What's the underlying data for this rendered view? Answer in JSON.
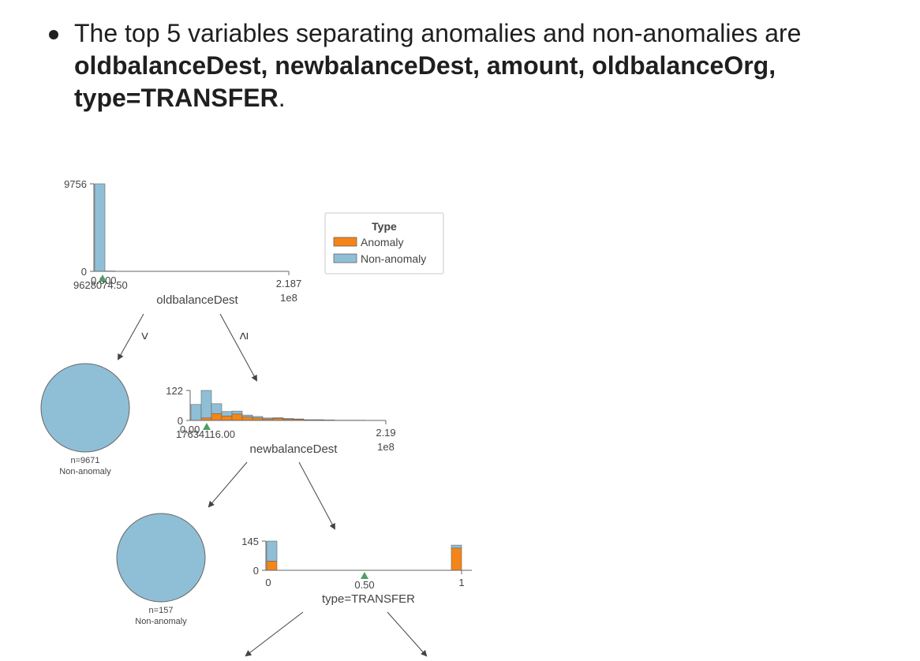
{
  "bullet": {
    "prefix": "The top 5 variables separating anomalies and non-anomalies are ",
    "bold": "oldbalanceDest, newbalanceDest, amount, oldbalanceOrg, type=TRANSFER",
    "suffix": "."
  },
  "legend": {
    "title": "Type",
    "items": [
      {
        "label": "Anomaly",
        "color": "#f58518"
      },
      {
        "label": "Non-anomaly",
        "color": "#8fbfd6"
      }
    ]
  },
  "tree": {
    "node1": {
      "feature": "oldbalanceDest",
      "ymax": "9756",
      "ymin": "0",
      "xmin": "0.000",
      "xmax": "2.187",
      "scale": "1e8",
      "split": "9628074.50",
      "left_sign": "<",
      "right_sign": "≥"
    },
    "leaf1": {
      "n": "n=9671",
      "label": "Non-anomaly"
    },
    "node2": {
      "feature": "newbalanceDest",
      "ymax": "122",
      "ymin": "0",
      "xmin": "0.00",
      "xmax": "2.19",
      "scale": "1e8",
      "split": "17634116.00"
    },
    "leaf2": {
      "n": "n=157",
      "label": "Non-anomaly"
    },
    "node3": {
      "feature": "type=TRANSFER",
      "ymax": "145",
      "ymin": "0",
      "xmin": "0",
      "xmax": "1",
      "split": "0.50"
    }
  },
  "chart_data": [
    {
      "type": "bar",
      "title": "",
      "xlabel": "oldbalanceDest",
      "ylabel": "",
      "ylim": [
        0,
        9756
      ],
      "xlim": [
        0,
        218700000
      ],
      "split": 9628074.5,
      "series": [
        {
          "name": "Non-anomaly",
          "values": [
            9756,
            40,
            15,
            8,
            5,
            3,
            2,
            1
          ]
        },
        {
          "name": "Anomaly",
          "values": [
            0,
            0,
            0,
            0,
            0,
            0,
            0,
            0
          ]
        }
      ]
    },
    {
      "type": "bar",
      "title": "",
      "xlabel": "newbalanceDest",
      "ylabel": "",
      "ylim": [
        0,
        122
      ],
      "xlim": [
        0,
        219000000
      ],
      "split": 17634116.0,
      "series": [
        {
          "name": "Non-anomaly",
          "values": [
            65,
            112,
            40,
            18,
            12,
            8,
            6,
            4,
            3,
            3,
            2,
            1,
            1,
            1,
            0,
            0,
            0
          ]
        },
        {
          "name": "Anomaly",
          "values": [
            0,
            10,
            28,
            18,
            26,
            14,
            10,
            6,
            8,
            5,
            4,
            2,
            2,
            1,
            1,
            1,
            1
          ]
        }
      ]
    },
    {
      "type": "bar",
      "title": "",
      "xlabel": "type=TRANSFER",
      "ylabel": "",
      "ylim": [
        0,
        145
      ],
      "xlim": [
        0,
        1
      ],
      "split": 0.5,
      "categories": [
        "0",
        "1"
      ],
      "series": [
        {
          "name": "Non-anomaly",
          "values": [
            145,
            15
          ]
        },
        {
          "name": "Anomaly",
          "values": [
            45,
            110
          ]
        }
      ]
    }
  ]
}
